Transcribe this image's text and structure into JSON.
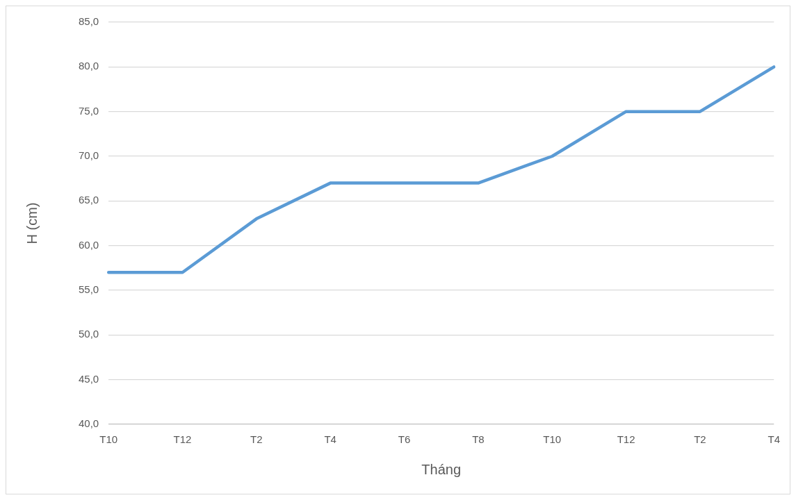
{
  "chart_data": {
    "type": "line",
    "xlabel": "Tháng",
    "ylabel": "H (cm)",
    "categories": [
      "T10",
      "T12",
      "T2",
      "T4",
      "T6",
      "T8",
      "T10",
      "T12",
      "T2",
      "T4"
    ],
    "series": [
      {
        "color": "#5b9bd5",
        "values": [
          57,
          57,
          63,
          67,
          67,
          67,
          70,
          75,
          75,
          80
        ]
      }
    ],
    "ylim": [
      40,
      85
    ],
    "yticks": [
      {
        "value": 40,
        "label": "40,0"
      },
      {
        "value": 45,
        "label": "45,0"
      },
      {
        "value": 50,
        "label": "50,0"
      },
      {
        "value": 55,
        "label": "55,0"
      },
      {
        "value": 60,
        "label": "60,0"
      },
      {
        "value": 65,
        "label": "65,0"
      },
      {
        "value": 70,
        "label": "70,0"
      },
      {
        "value": 75,
        "label": "75,0"
      },
      {
        "value": 80,
        "label": "80,0"
      },
      {
        "value": 85,
        "label": "85,0"
      }
    ],
    "grid": "y",
    "legend": false,
    "marker": "none",
    "line_style": "solid"
  }
}
